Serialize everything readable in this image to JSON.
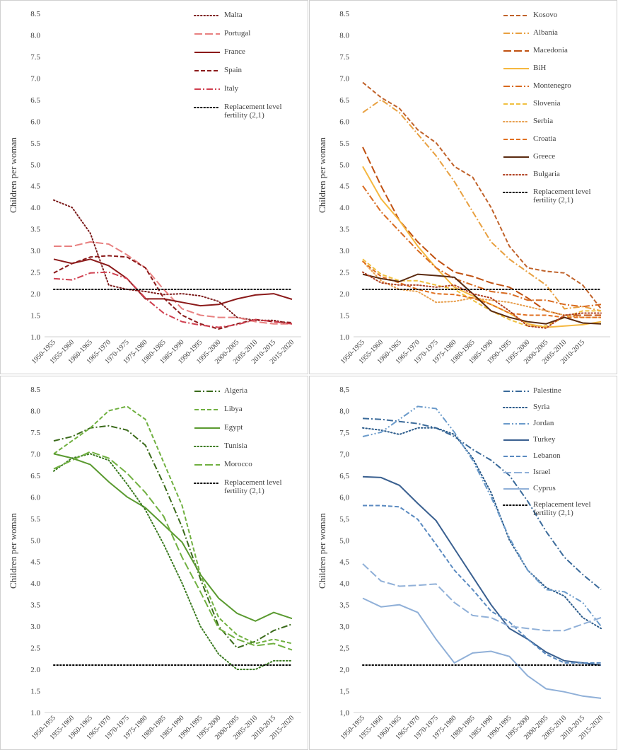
{
  "chart_data": [
    {
      "type": "line",
      "ylabel": "Children per woman",
      "legend": "upper right",
      "categories": [
        "1950-1955",
        "1955-1960",
        "1960-1965",
        "1965-1970",
        "1970-1975",
        "1975-1980",
        "1980-1985",
        "1985-1990",
        "1990-1995",
        "1995-2000",
        "2000-2005",
        "2005-2010",
        "2010-2015",
        "2015-2020"
      ],
      "ylim": [
        1,
        8.5
      ],
      "yticks": [
        {
          "value": 1,
          "label": "1.0"
        },
        1.5,
        {
          "value": 2,
          "label": "2.0"
        },
        2.5,
        {
          "value": 3,
          "label": "3.0"
        },
        3.5,
        {
          "value": 4,
          "label": "4.0"
        },
        4.5,
        {
          "value": 5,
          "label": "5.0"
        },
        5.5,
        {
          "value": 6,
          "label": "6.0"
        },
        6.5,
        {
          "value": 7,
          "label": "7.0"
        },
        7.5,
        {
          "value": 8,
          "label": "8.0"
        },
        8.5
      ],
      "series": [
        {
          "name": "Malta",
          "color": "#7b1a1a",
          "dash": "dotted",
          "values": [
            4.17,
            4.0,
            3.4,
            2.2,
            2.1,
            2.05,
            1.98,
            2.0,
            1.95,
            1.82,
            1.45,
            1.38,
            1.38,
            1.3
          ]
        },
        {
          "name": "Portugal",
          "color": "#e88080",
          "dash": "longdash",
          "values": [
            3.1,
            3.1,
            3.2,
            3.15,
            2.9,
            2.6,
            2.1,
            1.65,
            1.5,
            1.45,
            1.45,
            1.35,
            1.3,
            1.3
          ]
        },
        {
          "name": "France",
          "color": "#8b1a1a",
          "dash": "solid",
          "values": [
            2.8,
            2.7,
            2.8,
            2.65,
            2.35,
            1.88,
            1.88,
            1.8,
            1.72,
            1.75,
            1.88,
            1.97,
            2.0,
            1.87
          ]
        },
        {
          "name": "Spain",
          "color": "#8b1a1a",
          "dash": "dashed",
          "values": [
            2.48,
            2.7,
            2.85,
            2.88,
            2.85,
            2.6,
            1.9,
            1.5,
            1.3,
            1.18,
            1.3,
            1.4,
            1.35,
            1.33
          ]
        },
        {
          "name": "Italy",
          "color": "#d04050",
          "dash": "dashdot",
          "values": [
            2.35,
            2.32,
            2.48,
            2.5,
            2.35,
            1.9,
            1.55,
            1.35,
            1.27,
            1.22,
            1.28,
            1.4,
            1.35,
            1.3
          ]
        },
        {
          "name": "Replacement level fertility (2,1)",
          "color": "#000000",
          "dash": "dotted",
          "values": [
            2.1,
            2.1,
            2.1,
            2.1,
            2.1,
            2.1,
            2.1,
            2.1,
            2.1,
            2.1,
            2.1,
            2.1,
            2.1,
            2.1
          ]
        }
      ]
    },
    {
      "type": "line",
      "ylabel": "Children per woman",
      "legend": "upper right",
      "categories": [
        "1950-1955",
        "1955-1960",
        "1960-1965",
        "1965-1970",
        "1970-1975",
        "1975-1980",
        "1980-1985",
        "1985-1990",
        "1990-1995",
        "1995-2000",
        "2000-2005",
        "2005-2010",
        "2010-2015",
        null
      ],
      "ylim": [
        1,
        8.5
      ],
      "yticks": [
        {
          "value": 1,
          "label": "1.0"
        },
        1.5,
        {
          "value": 2,
          "label": "2.0"
        },
        2.5,
        {
          "value": 3,
          "label": "3.0"
        },
        3.5,
        {
          "value": 4,
          "label": "4.0"
        },
        4.5,
        {
          "value": 5,
          "label": "5.0"
        },
        5.5,
        {
          "value": 6,
          "label": "6.0"
        },
        6.5,
        {
          "value": 7,
          "label": "7.0"
        },
        7.5,
        {
          "value": 8,
          "label": "8.0"
        },
        8.5
      ],
      "series": [
        {
          "name": "Kosovo",
          "color": "#c0622a",
          "dash": "dashed",
          "values": [
            6.9,
            6.55,
            6.3,
            5.8,
            5.5,
            4.95,
            4.7,
            4.0,
            3.1,
            2.6,
            2.52,
            2.48,
            2.2,
            1.65
          ]
        },
        {
          "name": "Albania",
          "color": "#e8a040",
          "dash": "dashdot",
          "values": [
            6.2,
            6.5,
            6.2,
            5.7,
            5.2,
            4.6,
            3.9,
            3.2,
            2.8,
            2.5,
            2.2,
            1.65,
            1.7,
            1.6
          ]
        },
        {
          "name": "Macedonia",
          "color": "#c05010",
          "dash": "longdash",
          "values": [
            5.4,
            4.5,
            3.7,
            3.2,
            2.8,
            2.5,
            2.4,
            2.25,
            2.15,
            1.9,
            1.6,
            1.5,
            1.5,
            1.5
          ]
        },
        {
          "name": "BiH",
          "color": "#f5b840",
          "dash": "solid",
          "values": [
            4.95,
            4.2,
            3.7,
            3.1,
            2.6,
            2.15,
            1.95,
            1.75,
            1.55,
            1.3,
            1.22,
            1.25,
            1.28,
            1.35
          ]
        },
        {
          "name": "Montenegro",
          "color": "#d86a20",
          "dash": "dashdot",
          "values": [
            4.5,
            3.9,
            3.45,
            3.0,
            2.6,
            2.35,
            2.2,
            2.05,
            2.0,
            1.85,
            1.85,
            1.75,
            1.7,
            1.75
          ]
        },
        {
          "name": "Slovenia",
          "color": "#f0c040",
          "dash": "dashed",
          "values": [
            2.8,
            2.45,
            2.3,
            2.3,
            2.2,
            2.1,
            1.85,
            1.6,
            1.4,
            1.25,
            1.25,
            1.45,
            1.6,
            1.6
          ]
        },
        {
          "name": "Serbia",
          "color": "#e8a050",
          "dash": "dotted",
          "values": [
            2.75,
            2.3,
            2.1,
            2.05,
            1.8,
            1.82,
            1.9,
            1.85,
            1.8,
            1.7,
            1.6,
            1.5,
            1.45,
            1.45
          ]
        },
        {
          "name": "Croatia",
          "color": "#e07020",
          "dash": "dashed",
          "values": [
            2.75,
            2.4,
            2.25,
            2.1,
            2.0,
            1.98,
            1.9,
            1.75,
            1.55,
            1.5,
            1.5,
            1.45,
            1.45,
            1.45
          ]
        },
        {
          "name": "Greece",
          "color": "#5a2a10",
          "dash": "solid",
          "values": [
            2.45,
            2.35,
            2.28,
            2.45,
            2.42,
            2.38,
            2.0,
            1.6,
            1.45,
            1.35,
            1.3,
            1.45,
            1.32,
            1.3
          ]
        },
        {
          "name": "Bulgaria",
          "color": "#b04020",
          "dash": "dotted",
          "values": [
            2.5,
            2.25,
            2.2,
            2.2,
            2.15,
            2.2,
            2.0,
            1.9,
            1.6,
            1.25,
            1.2,
            1.5,
            1.55,
            1.55
          ]
        },
        {
          "name": "Replacement level fertility (2,1)",
          "color": "#000000",
          "dash": "dotted",
          "values": [
            2.1,
            2.1,
            2.1,
            2.1,
            2.1,
            2.1,
            2.1,
            2.1,
            2.1,
            2.1,
            2.1,
            2.1,
            2.1,
            2.1
          ]
        }
      ]
    },
    {
      "type": "line",
      "ylabel": "Children per woman",
      "legend": "upper right",
      "categories": [
        "1950-1955",
        "1955-1960",
        "1960-1965",
        "1965-1970",
        "1970-1975",
        "1975-1980",
        "1980-1985",
        "1985-1990",
        "1990-1995",
        "1995-2000",
        "2000-2005",
        "2005-2010",
        "2010-2015",
        "2015-2020"
      ],
      "ylim": [
        1,
        8.5
      ],
      "yticks": [
        {
          "value": 1,
          "label": "1.0"
        },
        1.5,
        {
          "value": 2,
          "label": "2.0"
        },
        2.5,
        {
          "value": 3,
          "label": "3.0"
        },
        3.5,
        {
          "value": 4,
          "label": "4.0"
        },
        4.5,
        {
          "value": 5,
          "label": "5.0"
        },
        5.5,
        {
          "value": 6,
          "label": "6.0"
        },
        6.5,
        {
          "value": 7,
          "label": "7.0"
        },
        7.5,
        {
          "value": 8,
          "label": "8.0"
        },
        8.5
      ],
      "series": [
        {
          "name": "Algeria",
          "color": "#3a6a1a",
          "dash": "dashdot",
          "values": [
            7.3,
            7.4,
            7.6,
            7.65,
            7.55,
            7.2,
            6.3,
            5.3,
            4.1,
            3.0,
            2.5,
            2.65,
            2.9,
            3.05
          ]
        },
        {
          "name": "Libya",
          "color": "#70b040",
          "dash": "dashed",
          "values": [
            7.0,
            7.3,
            7.6,
            8.0,
            8.1,
            7.8,
            6.8,
            5.8,
            4.2,
            3.2,
            2.8,
            2.6,
            2.7,
            2.6
          ]
        },
        {
          "name": "Egypt",
          "color": "#5a9a30",
          "dash": "solid",
          "values": [
            7.0,
            6.9,
            6.75,
            6.35,
            6.0,
            5.75,
            5.35,
            4.95,
            4.2,
            3.65,
            3.3,
            3.12,
            3.32,
            3.18
          ]
        },
        {
          "name": "Tunisia",
          "color": "#3a7a20",
          "dash": "dotted",
          "values": [
            6.6,
            6.9,
            7.0,
            6.85,
            6.3,
            5.7,
            4.9,
            4.0,
            3.0,
            2.35,
            2.0,
            2.0,
            2.2,
            2.2
          ]
        },
        {
          "name": "Morocco",
          "color": "#70b040",
          "dash": "longdash",
          "values": [
            6.65,
            6.85,
            7.05,
            6.9,
            6.55,
            6.1,
            5.55,
            4.6,
            3.8,
            2.95,
            2.7,
            2.55,
            2.6,
            2.45
          ]
        },
        {
          "name": "Replacement level fertility (2,1)",
          "color": "#000000",
          "dash": "dotted",
          "values": [
            2.1,
            2.1,
            2.1,
            2.1,
            2.1,
            2.1,
            2.1,
            2.1,
            2.1,
            2.1,
            2.1,
            2.1,
            2.1,
            2.1
          ]
        }
      ]
    },
    {
      "type": "line",
      "ylabel": "Children per woman",
      "legend": "upper right",
      "categories": [
        "1950-1955",
        "1955-1960",
        "1960-1965",
        "1965-1970",
        "1970-1975",
        "1975-1980",
        "1980-1985",
        "1985-1990",
        "1990-1995",
        "1995-2000",
        "2000-2005",
        "2005-2010",
        "2010-2015",
        "2015-2020"
      ],
      "ylim": [
        1,
        8.5
      ],
      "yticks": [
        {
          "value": 1,
          "label": "1,0"
        },
        {
          "value": 1.5,
          "label": "1,5"
        },
        {
          "value": 2,
          "label": "2,0"
        },
        {
          "value": 2.5,
          "label": "2,5"
        },
        {
          "value": 3,
          "label": "3,0"
        },
        {
          "value": 3.5,
          "label": "3,5"
        },
        {
          "value": 4,
          "label": "4,0"
        },
        {
          "value": 4.5,
          "label": "4,5"
        },
        {
          "value": 5,
          "label": "5,0"
        },
        {
          "value": 5.5,
          "label": "5,5"
        },
        {
          "value": 6,
          "label": "6,0"
        },
        {
          "value": 6.5,
          "label": "6,5"
        },
        {
          "value": 7,
          "label": "7,0"
        },
        {
          "value": 7.5,
          "label": "7,5"
        },
        {
          "value": 8,
          "label": "8,0"
        },
        {
          "value": 8.5,
          "label": "8,5"
        }
      ],
      "series": [
        {
          "name": "Palestine",
          "color": "#3a6a9a",
          "dash": "dashdot",
          "values": [
            7.82,
            7.8,
            7.75,
            7.7,
            7.6,
            7.4,
            7.1,
            6.85,
            6.5,
            5.9,
            5.2,
            4.6,
            4.2,
            3.85
          ]
        },
        {
          "name": "Syria",
          "color": "#2a5a8a",
          "dash": "dotted",
          "values": [
            7.6,
            7.55,
            7.45,
            7.6,
            7.6,
            7.45,
            6.9,
            6.1,
            5.0,
            4.3,
            3.9,
            3.7,
            3.2,
            2.95
          ]
        },
        {
          "name": "Jordan",
          "color": "#6a9aca",
          "dash": "dashdotdot",
          "values": [
            7.4,
            7.5,
            7.8,
            8.1,
            8.05,
            7.5,
            6.85,
            6.0,
            5.05,
            4.3,
            3.85,
            3.8,
            3.55,
            3.0
          ]
        },
        {
          "name": "Turkey",
          "color": "#3a6090",
          "dash": "solid",
          "values": [
            6.47,
            6.45,
            6.27,
            5.85,
            5.45,
            4.8,
            4.15,
            3.5,
            2.95,
            2.7,
            2.4,
            2.2,
            2.15,
            2.1
          ]
        },
        {
          "name": "Lebanon",
          "color": "#5a8ac0",
          "dash": "dashed",
          "values": [
            5.8,
            5.8,
            5.77,
            5.48,
            4.9,
            4.3,
            3.85,
            3.35,
            3.1,
            2.7,
            2.35,
            2.15,
            2.15,
            2.15
          ]
        },
        {
          "name": "Israel",
          "color": "#90b0d8",
          "dash": "longdash",
          "values": [
            4.45,
            4.05,
            3.93,
            3.95,
            3.98,
            3.55,
            3.25,
            3.2,
            3.0,
            2.95,
            2.9,
            2.9,
            3.05,
            3.2
          ]
        },
        {
          "name": "Cyprus",
          "color": "#90b0d8",
          "dash": "solid",
          "values": [
            3.65,
            3.45,
            3.5,
            3.32,
            2.7,
            2.15,
            2.38,
            2.42,
            2.3,
            1.85,
            1.55,
            1.48,
            1.38,
            1.33
          ]
        },
        {
          "name": "Replacement level fertility (2,1)",
          "color": "#000000",
          "dash": "dotted",
          "values": [
            2.1,
            2.1,
            2.1,
            2.1,
            2.1,
            2.1,
            2.1,
            2.1,
            2.1,
            2.1,
            2.1,
            2.1,
            2.1,
            2.1
          ]
        }
      ]
    }
  ]
}
